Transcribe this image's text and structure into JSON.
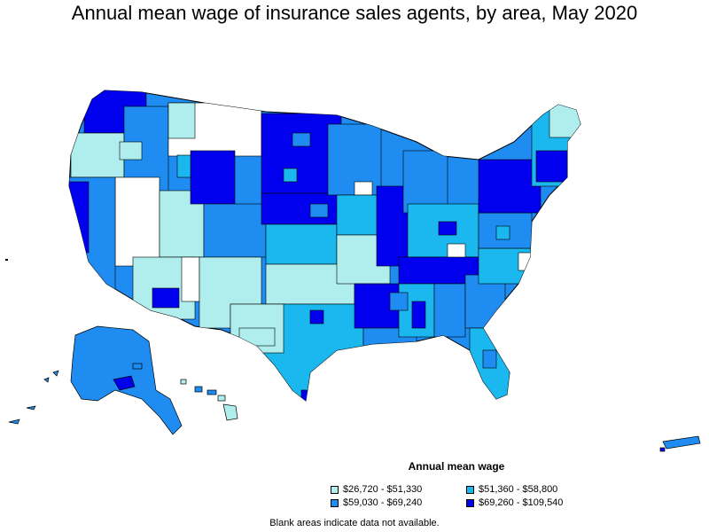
{
  "title": "Annual mean wage of insurance sales agents, by area, May 2020",
  "legend": {
    "title": "Annual mean wage",
    "items": [
      {
        "label": "$26,720 - $51,330",
        "color": "#b0eeee"
      },
      {
        "label": "$51,360 - $58,800",
        "color": "#1ab8ee"
      },
      {
        "label": "$59,030 - $69,240",
        "color": "#1e8cf0"
      },
      {
        "label": "$69,260 - $109,540",
        "color": "#0000ee"
      }
    ]
  },
  "footnote": "Blank areas indicate data not available.",
  "colors": {
    "no_data": "#ffffff",
    "border": "#000000"
  }
}
